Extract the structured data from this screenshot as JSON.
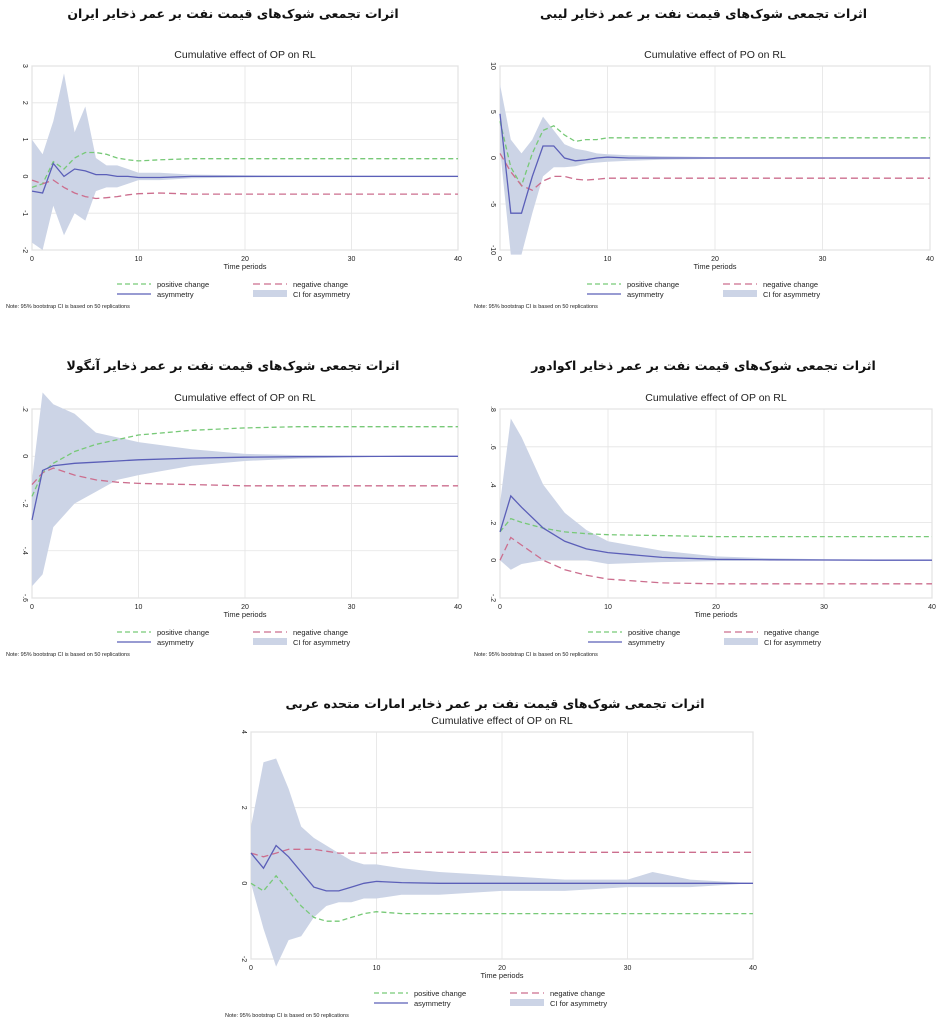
{
  "common": {
    "xlabel": "Time periods",
    "note": "Note: 95% bootstrap CI is based on 50 replications",
    "legend": {
      "positive": "positive change",
      "negative": "negative change",
      "asymmetry": "asymmetry",
      "ci": "CI for asymmetry"
    },
    "colors": {
      "positive": "#77c977",
      "negative": "#cc6e8e",
      "asymmetry": "#5b5fb8",
      "ci": "#ccd4e6",
      "grid": "#e4e4e4"
    }
  },
  "chart_data": [
    {
      "type": "line",
      "fa_title": "اثرات تجمعی شوک‌های قیمت نفت بر عمر ذخایر ایران",
      "title": "Cumulative effect of OP on RL",
      "xlabel": "Time periods",
      "xlim": [
        0,
        40
      ],
      "ylim": [
        -2,
        3
      ],
      "xticks": [
        0,
        10,
        20,
        30,
        40
      ],
      "yticks": [
        -2,
        -1,
        0,
        1,
        2,
        3
      ],
      "series": [
        {
          "name": "positive change",
          "x": [
            0,
            1,
            2,
            3,
            4,
            5,
            6,
            7,
            8,
            9,
            10,
            12,
            15,
            20,
            25,
            30,
            40
          ],
          "y": [
            -0.3,
            -0.2,
            0.4,
            0.2,
            0.5,
            0.65,
            0.65,
            0.6,
            0.5,
            0.45,
            0.42,
            0.45,
            0.48,
            0.48,
            0.48,
            0.48,
            0.48
          ]
        },
        {
          "name": "negative change",
          "x": [
            0,
            1,
            2,
            3,
            4,
            5,
            6,
            7,
            8,
            9,
            10,
            12,
            15,
            20,
            25,
            30,
            40
          ],
          "y": [
            -0.1,
            -0.2,
            -0.1,
            -0.3,
            -0.45,
            -0.55,
            -0.6,
            -0.58,
            -0.55,
            -0.5,
            -0.47,
            -0.45,
            -0.48,
            -0.48,
            -0.48,
            -0.48,
            -0.48
          ]
        },
        {
          "name": "asymmetry",
          "x": [
            0,
            1,
            2,
            3,
            4,
            5,
            6,
            7,
            8,
            9,
            10,
            12,
            15,
            20,
            25,
            30,
            40
          ],
          "y": [
            -0.4,
            -0.45,
            0.35,
            0.0,
            0.2,
            0.15,
            0.05,
            0.05,
            0.0,
            0.0,
            -0.03,
            -0.03,
            0.0,
            0.0,
            0.0,
            0.0,
            0.0
          ]
        }
      ],
      "ci": {
        "x": [
          0,
          1,
          2,
          3,
          4,
          5,
          6,
          7,
          8,
          9,
          10,
          12,
          15,
          20,
          25,
          30,
          40
        ],
        "upper": [
          1.0,
          0.6,
          1.5,
          2.8,
          1.2,
          1.9,
          0.5,
          0.3,
          0.3,
          0.2,
          0.1,
          0.1,
          0.05,
          0.03,
          0.02,
          0.02,
          0.02
        ],
        "lower": [
          -1.8,
          -2.0,
          -0.8,
          -1.6,
          -1.0,
          -1.2,
          -0.4,
          -0.3,
          -0.3,
          -0.2,
          -0.1,
          -0.1,
          -0.05,
          -0.03,
          -0.02,
          -0.02,
          -0.02
        ]
      }
    },
    {
      "type": "line",
      "fa_title": "اثرات تجمعی شوک‌های قیمت نفت بر عمر ذخایر لیبی",
      "title": "Cumulative effect of PO on RL",
      "xlabel": "Time periods",
      "xlim": [
        0,
        40
      ],
      "ylim": [
        -10,
        10
      ],
      "xticks": [
        0,
        10,
        20,
        30,
        40
      ],
      "yticks": [
        -10,
        -5,
        0,
        5,
        10
      ],
      "series": [
        {
          "name": "positive change",
          "x": [
            0,
            1,
            2,
            3,
            4,
            5,
            6,
            7,
            8,
            9,
            10,
            12,
            15,
            20,
            25,
            30,
            40
          ],
          "y": [
            4.0,
            -1.0,
            -3.0,
            0.5,
            3.0,
            3.5,
            2.5,
            1.8,
            2.0,
            2.0,
            2.2,
            2.2,
            2.2,
            2.2,
            2.2,
            2.2,
            2.2
          ]
        },
        {
          "name": "negative change",
          "x": [
            0,
            1,
            2,
            3,
            4,
            5,
            6,
            7,
            8,
            9,
            10,
            12,
            15,
            20,
            25,
            30,
            40
          ],
          "y": [
            0.5,
            -1.5,
            -3.0,
            -3.5,
            -2.5,
            -2.0,
            -2.0,
            -2.3,
            -2.4,
            -2.3,
            -2.2,
            -2.2,
            -2.2,
            -2.2,
            -2.2,
            -2.2,
            -2.2
          ]
        },
        {
          "name": "asymmetry",
          "x": [
            0,
            1,
            2,
            3,
            4,
            5,
            6,
            7,
            8,
            9,
            10,
            12,
            15,
            20,
            25,
            30,
            40
          ],
          "y": [
            4.8,
            -6.0,
            -6.0,
            -2.0,
            1.3,
            1.3,
            0.0,
            -0.3,
            -0.2,
            0.0,
            0.1,
            0.0,
            0.0,
            0.0,
            0.0,
            0.0,
            0.0
          ]
        }
      ],
      "ci": {
        "x": [
          0,
          1,
          2,
          3,
          4,
          5,
          6,
          7,
          8,
          9,
          10,
          12,
          15,
          20,
          25,
          30,
          40
        ],
        "upper": [
          8.0,
          2.0,
          0.5,
          2.0,
          4.5,
          3.0,
          1.5,
          1.0,
          0.8,
          0.5,
          0.4,
          0.3,
          0.2,
          0.1,
          0.1,
          0.1,
          0.1
        ],
        "lower": [
          1.0,
          -10.5,
          -10.5,
          -6.0,
          -2.0,
          -1.0,
          -1.0,
          -0.9,
          -0.6,
          -0.5,
          -0.4,
          -0.3,
          -0.2,
          -0.1,
          -0.1,
          -0.1,
          -0.1
        ]
      }
    },
    {
      "type": "line",
      "fa_title": "اثرات تجمعی شوک‌های قیمت نفت بر عمر ذخایر آنگولا",
      "title": "Cumulative effect of OP on RL",
      "xlabel": "Time periods",
      "xlim": [
        0,
        40
      ],
      "ylim": [
        -0.6,
        0.2
      ],
      "xticks": [
        0,
        10,
        20,
        30,
        40
      ],
      "yticks": [
        -0.6,
        -0.4,
        -0.2,
        0,
        0.2
      ],
      "ytick_labels": [
        "-.6",
        "-.4",
        "-.2",
        "0",
        ".2"
      ],
      "series": [
        {
          "name": "positive change",
          "x": [
            0,
            1,
            2,
            4,
            6,
            8,
            10,
            15,
            20,
            25,
            30,
            35,
            40
          ],
          "y": [
            -0.17,
            -0.07,
            -0.03,
            0.02,
            0.05,
            0.07,
            0.09,
            0.11,
            0.12,
            0.125,
            0.125,
            0.125,
            0.125
          ]
        },
        {
          "name": "negative change",
          "x": [
            0,
            1,
            2,
            4,
            6,
            8,
            10,
            15,
            20,
            25,
            30,
            35,
            40
          ],
          "y": [
            -0.12,
            -0.07,
            -0.05,
            -0.08,
            -0.1,
            -0.11,
            -0.115,
            -0.12,
            -0.125,
            -0.125,
            -0.125,
            -0.125,
            -0.125
          ]
        },
        {
          "name": "asymmetry",
          "x": [
            0,
            1,
            2,
            4,
            6,
            8,
            10,
            15,
            20,
            25,
            30,
            35,
            40
          ],
          "y": [
            -0.27,
            -0.06,
            -0.04,
            -0.03,
            -0.025,
            -0.02,
            -0.015,
            -0.008,
            -0.004,
            -0.002,
            -0.001,
            0.0,
            0.0
          ]
        }
      ],
      "ci": {
        "x": [
          0,
          1,
          2,
          4,
          6,
          8,
          10,
          15,
          20,
          25,
          30,
          35,
          40
        ],
        "upper": [
          -0.1,
          0.27,
          0.22,
          0.18,
          0.1,
          0.08,
          0.06,
          0.03,
          0.01,
          0.005,
          0.003,
          0.0,
          0.0
        ],
        "lower": [
          -0.55,
          -0.5,
          -0.3,
          -0.2,
          -0.15,
          -0.1,
          -0.08,
          -0.04,
          -0.02,
          -0.01,
          -0.005,
          0.0,
          0.0
        ]
      }
    },
    {
      "type": "line",
      "fa_title": "اثرات تجمعی شوک‌های قیمت نفت بر عمر ذخایر اکوادور",
      "title": "Cumulative effect of OP on RL",
      "xlabel": "Time periods",
      "xlim": [
        0,
        40
      ],
      "ylim": [
        -0.2,
        0.8
      ],
      "xticks": [
        0,
        10,
        20,
        30,
        40
      ],
      "yticks": [
        -0.2,
        0,
        0.2,
        0.4,
        0.6,
        0.8
      ],
      "ytick_labels": [
        "-.2",
        "0",
        ".2",
        ".4",
        ".6",
        ".8"
      ],
      "series": [
        {
          "name": "positive change",
          "x": [
            0,
            1,
            2,
            4,
            6,
            8,
            10,
            15,
            20,
            25,
            30,
            35,
            40
          ],
          "y": [
            0.15,
            0.22,
            0.2,
            0.17,
            0.15,
            0.14,
            0.135,
            0.13,
            0.125,
            0.125,
            0.125,
            0.125,
            0.125
          ]
        },
        {
          "name": "negative change",
          "x": [
            0,
            1,
            2,
            4,
            6,
            8,
            10,
            15,
            20,
            25,
            30,
            35,
            40
          ],
          "y": [
            0.0,
            0.12,
            0.08,
            0.0,
            -0.05,
            -0.08,
            -0.1,
            -0.12,
            -0.125,
            -0.125,
            -0.125,
            -0.125,
            -0.125
          ]
        },
        {
          "name": "asymmetry",
          "x": [
            0,
            1,
            2,
            4,
            6,
            8,
            10,
            15,
            20,
            25,
            30,
            35,
            40
          ],
          "y": [
            0.15,
            0.34,
            0.28,
            0.17,
            0.1,
            0.06,
            0.04,
            0.015,
            0.005,
            0.002,
            0.001,
            0.0,
            0.0
          ]
        }
      ],
      "ci": {
        "x": [
          0,
          1,
          2,
          4,
          6,
          8,
          10,
          15,
          20,
          25,
          30,
          35,
          40
        ],
        "upper": [
          0.3,
          0.75,
          0.65,
          0.4,
          0.25,
          0.16,
          0.1,
          0.05,
          0.02,
          0.01,
          0.005,
          0.003,
          0.002
        ],
        "lower": [
          0.0,
          -0.05,
          -0.02,
          0.0,
          0.0,
          0.0,
          -0.02,
          -0.01,
          -0.005,
          0.0,
          0.0,
          0.0,
          0.0
        ]
      }
    },
    {
      "type": "line",
      "fa_title": "اثرات تجمعی شوک‌های قیمت نفت بر عمر ذخایر امارات متحده عربی",
      "title": "Cumulative effect of OP on RL",
      "xlabel": "Time periods",
      "xlim": [
        0,
        40
      ],
      "ylim": [
        -2,
        4
      ],
      "xticks": [
        0,
        10,
        20,
        30,
        40
      ],
      "yticks": [
        -2,
        0,
        2,
        4
      ],
      "series": [
        {
          "name": "positive change",
          "x": [
            0,
            1,
            2,
            3,
            4,
            5,
            6,
            7,
            8,
            9,
            10,
            12,
            15,
            20,
            25,
            30,
            40
          ],
          "y": [
            0.0,
            -0.2,
            0.2,
            -0.2,
            -0.6,
            -0.9,
            -1.0,
            -1.0,
            -0.9,
            -0.8,
            -0.75,
            -0.8,
            -0.8,
            -0.8,
            -0.8,
            -0.8,
            -0.8
          ]
        },
        {
          "name": "negative change",
          "x": [
            0,
            1,
            2,
            3,
            4,
            5,
            6,
            7,
            8,
            9,
            10,
            12,
            15,
            20,
            25,
            30,
            40
          ],
          "y": [
            0.8,
            0.7,
            0.8,
            0.9,
            0.9,
            0.9,
            0.85,
            0.8,
            0.8,
            0.8,
            0.8,
            0.82,
            0.82,
            0.82,
            0.82,
            0.82,
            0.82
          ]
        },
        {
          "name": "asymmetry",
          "x": [
            0,
            1,
            2,
            3,
            4,
            5,
            6,
            7,
            8,
            9,
            10,
            12,
            15,
            20,
            25,
            30,
            40
          ],
          "y": [
            0.8,
            0.4,
            1.0,
            0.7,
            0.3,
            -0.1,
            -0.2,
            -0.2,
            -0.1,
            0.0,
            0.05,
            0.02,
            0.0,
            0.0,
            0.0,
            0.0,
            0.0
          ]
        }
      ],
      "ci": {
        "x": [
          0,
          1,
          2,
          3,
          4,
          5,
          6,
          7,
          8,
          9,
          10,
          12,
          15,
          20,
          25,
          30,
          32,
          35,
          40
        ],
        "upper": [
          1.5,
          3.2,
          3.3,
          2.5,
          1.5,
          1.2,
          1.0,
          0.8,
          0.6,
          0.5,
          0.5,
          0.4,
          0.3,
          0.2,
          0.1,
          0.1,
          0.3,
          0.1,
          0.0
        ],
        "lower": [
          0.0,
          -1.2,
          -2.2,
          -1.5,
          -1.4,
          -0.9,
          -0.6,
          -0.5,
          -0.5,
          -0.4,
          -0.4,
          -0.3,
          -0.3,
          -0.2,
          -0.2,
          -0.1,
          -0.1,
          -0.1,
          0.0
        ]
      }
    }
  ]
}
